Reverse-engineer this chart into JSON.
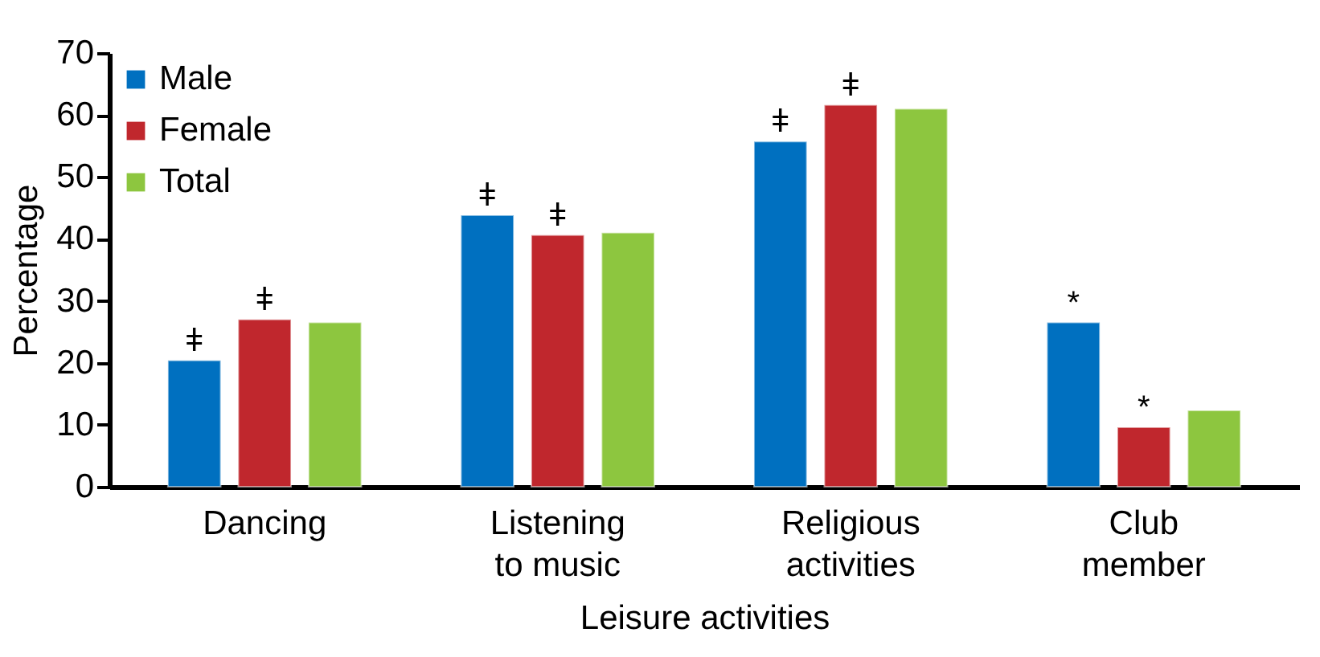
{
  "chart_data": {
    "type": "bar",
    "xlabel": "Leisure activities",
    "ylabel": "Percentage",
    "categories": [
      "Dancing",
      "Listening to music",
      "Religious activities",
      "Club member"
    ],
    "series": [
      {
        "name": "Male",
        "color": "#0070c0",
        "values": [
          20.4,
          43.8,
          55.7,
          26.5
        ],
        "value_labels": [
          "ǂ",
          "ǂ",
          "ǂ",
          "*"
        ]
      },
      {
        "name": "Female",
        "color": "#c0272d",
        "values": [
          27.0,
          40.6,
          61.6,
          9.6
        ],
        "value_labels": [
          "ǂ",
          "ǂ",
          "ǂ",
          "*"
        ]
      },
      {
        "name": "Total",
        "color": "#8dc63f",
        "values": [
          26.5,
          41.0,
          61.0,
          12.3
        ]
      }
    ],
    "ylim": [
      0,
      70
    ],
    "yticks": [
      0,
      10,
      20,
      30,
      40,
      50,
      60,
      70
    ],
    "grid": false,
    "legend": "top left"
  }
}
